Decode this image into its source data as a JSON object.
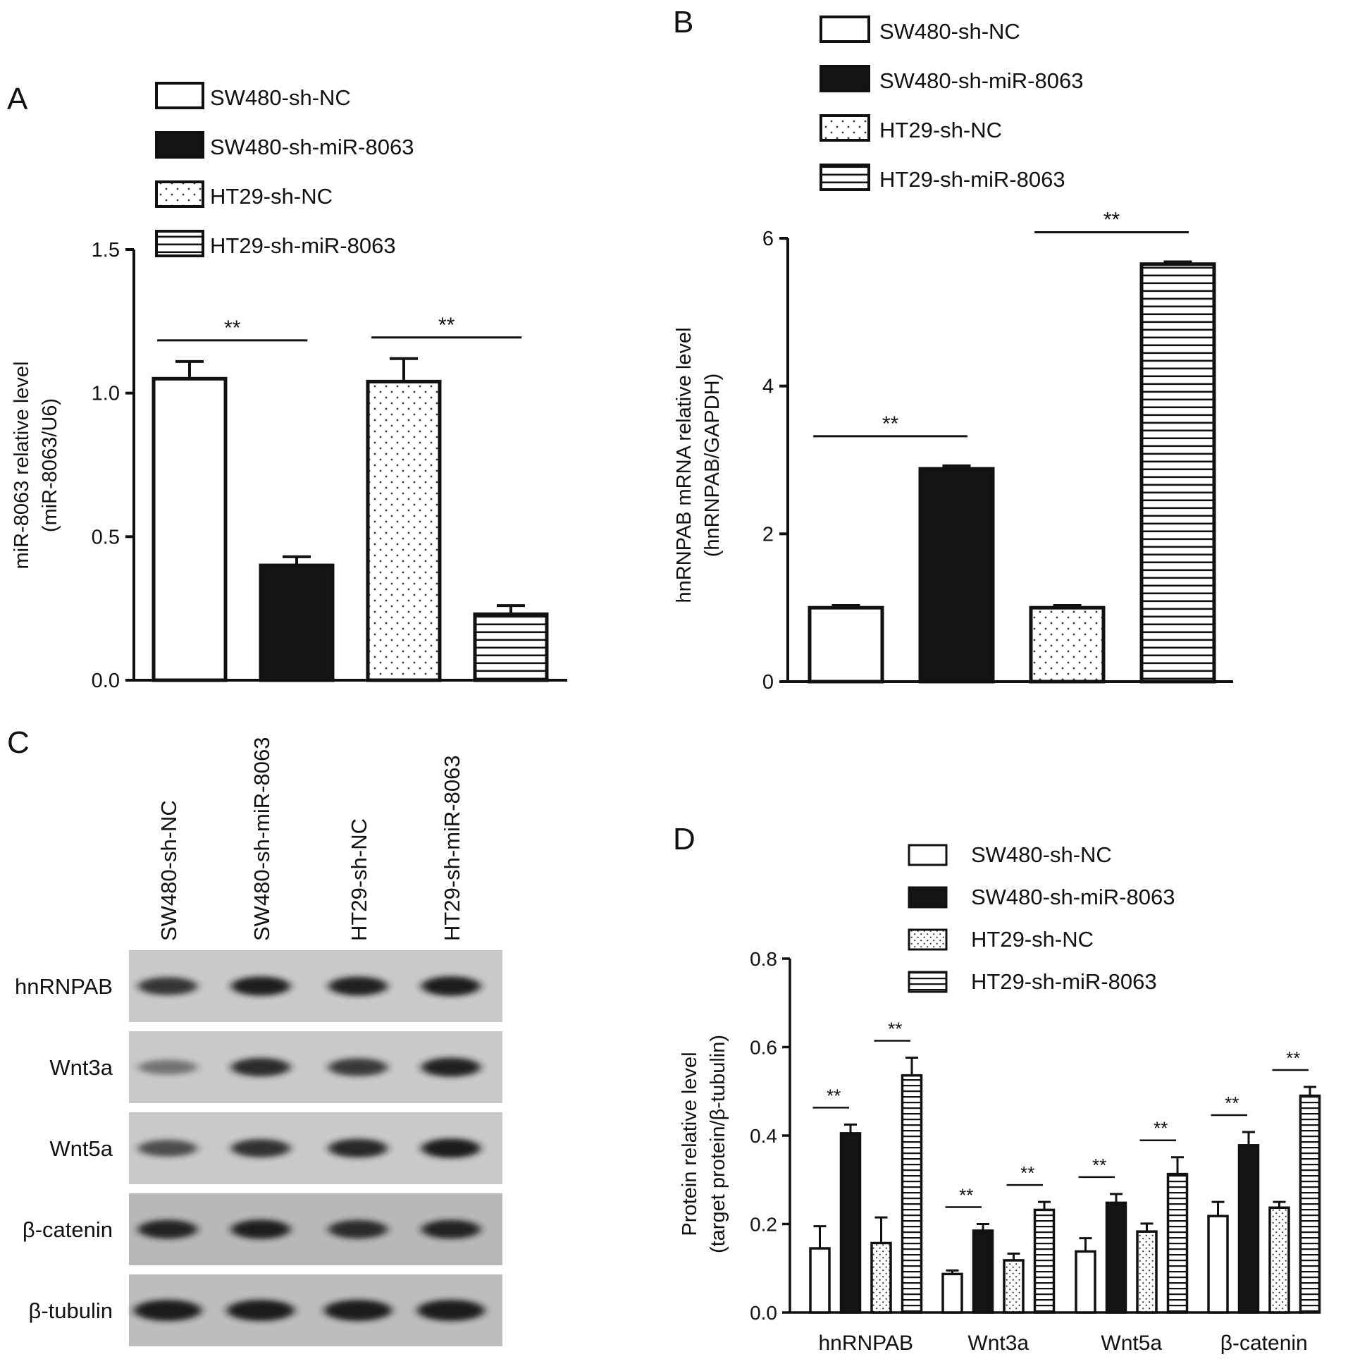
{
  "panels": {
    "a": "A",
    "b": "B",
    "c": "C",
    "d": "D"
  },
  "legend": [
    {
      "label": "SW480-sh-NC",
      "pattern": "white"
    },
    {
      "label": "SW480-sh-miR-8063",
      "pattern": "black"
    },
    {
      "label": "HT29-sh-NC",
      "pattern": "dots"
    },
    {
      "label": "HT29-sh-miR-8063",
      "pattern": "hlines"
    }
  ],
  "colors": {
    "ink": "#111111",
    "solid": "#141414",
    "blot_bg": "#c9c9c9",
    "band": "#1c1c1c"
  },
  "chart_data": [
    {
      "type": "bar",
      "panel": "A",
      "ylabel": "miR-8063 relative level",
      "ylabel2": "(miR-8063/U6)",
      "ylim": [
        0,
        1.5
      ],
      "yticks": [
        "0.0",
        "0.5",
        "1.0",
        "1.5"
      ],
      "categories": [
        "SW480-sh-NC",
        "SW480-sh-miR-8063",
        "HT29-sh-NC",
        "HT29-sh-miR-8063"
      ],
      "values": [
        1.05,
        0.4,
        1.04,
        0.23
      ],
      "errors": [
        0.06,
        0.03,
        0.08,
        0.03
      ],
      "significance": [
        {
          "pair": [
            0,
            1
          ],
          "label": "**"
        },
        {
          "pair": [
            2,
            3
          ],
          "label": "**"
        }
      ]
    },
    {
      "type": "bar",
      "panel": "B",
      "ylabel": "hnRNPAB mRNA relative level",
      "ylabel2": "(hnRNPAB/GAPDH)",
      "ylim": [
        0,
        6
      ],
      "yticks": [
        "0",
        "2",
        "4",
        "6"
      ],
      "categories": [
        "SW480-sh-NC",
        "SW480-sh-miR-8063",
        "HT29-sh-NC",
        "HT29-sh-miR-8063"
      ],
      "values": [
        1.0,
        2.88,
        1.0,
        5.65
      ],
      "errors": [
        0.03,
        0.04,
        0.03,
        0.03
      ],
      "significance": [
        {
          "pair": [
            0,
            1
          ],
          "label": "**"
        },
        {
          "pair": [
            2,
            3
          ],
          "label": "**"
        }
      ]
    },
    {
      "type": "bar",
      "panel": "D",
      "ylabel": "Protein relative level",
      "ylabel2": "(target protein/β-tubulin)",
      "ylim": [
        0,
        0.8
      ],
      "yticks": [
        "0.0",
        "0.2",
        "0.4",
        "0.6",
        "0.8"
      ],
      "categories": [
        "hnRNPAB",
        "Wnt3a",
        "Wnt5a",
        "β-catenin"
      ],
      "series": [
        {
          "name": "SW480-sh-NC",
          "values": [
            0.145,
            0.087,
            0.138,
            0.218
          ],
          "errors": [
            0.05,
            0.008,
            0.03,
            0.032
          ]
        },
        {
          "name": "SW480-sh-miR-8063",
          "values": [
            0.405,
            0.185,
            0.248,
            0.378
          ],
          "errors": [
            0.02,
            0.015,
            0.02,
            0.03
          ]
        },
        {
          "name": "HT29-sh-NC",
          "values": [
            0.157,
            0.118,
            0.183,
            0.237
          ],
          "errors": [
            0.058,
            0.015,
            0.018,
            0.013
          ]
        },
        {
          "name": "HT29-sh-miR-8063",
          "values": [
            0.536,
            0.232,
            0.313,
            0.49
          ],
          "errors": [
            0.04,
            0.018,
            0.038,
            0.02
          ]
        }
      ],
      "significance": [
        {
          "group": 0,
          "pair": [
            0,
            1
          ],
          "label": "**"
        },
        {
          "group": 0,
          "pair": [
            2,
            3
          ],
          "label": "**"
        },
        {
          "group": 1,
          "pair": [
            0,
            1
          ],
          "label": "**"
        },
        {
          "group": 1,
          "pair": [
            2,
            3
          ],
          "label": "**"
        },
        {
          "group": 2,
          "pair": [
            0,
            1
          ],
          "label": "**"
        },
        {
          "group": 2,
          "pair": [
            2,
            3
          ],
          "label": "**"
        },
        {
          "group": 3,
          "pair": [
            0,
            1
          ],
          "label": "**"
        },
        {
          "group": 3,
          "pair": [
            2,
            3
          ],
          "label": "**"
        }
      ]
    }
  ],
  "western_blot": {
    "lanes": [
      "SW480-sh-NC",
      "SW480-sh-miR-8063",
      "HT29-sh-NC",
      "HT29-sh-miR-8063"
    ],
    "rows": [
      {
        "label": "hnRNPAB",
        "intensity": [
          0.75,
          0.92,
          0.9,
          0.97
        ]
      },
      {
        "label": "Wnt3a",
        "intensity": [
          0.3,
          0.82,
          0.72,
          0.9
        ]
      },
      {
        "label": "Wnt5a",
        "intensity": [
          0.58,
          0.78,
          0.85,
          0.95
        ]
      },
      {
        "label": "β-catenin",
        "intensity": [
          0.88,
          0.92,
          0.82,
          0.88
        ]
      },
      {
        "label": "β-tubulin",
        "intensity": [
          1.0,
          1.0,
          1.0,
          1.0
        ]
      }
    ]
  }
}
